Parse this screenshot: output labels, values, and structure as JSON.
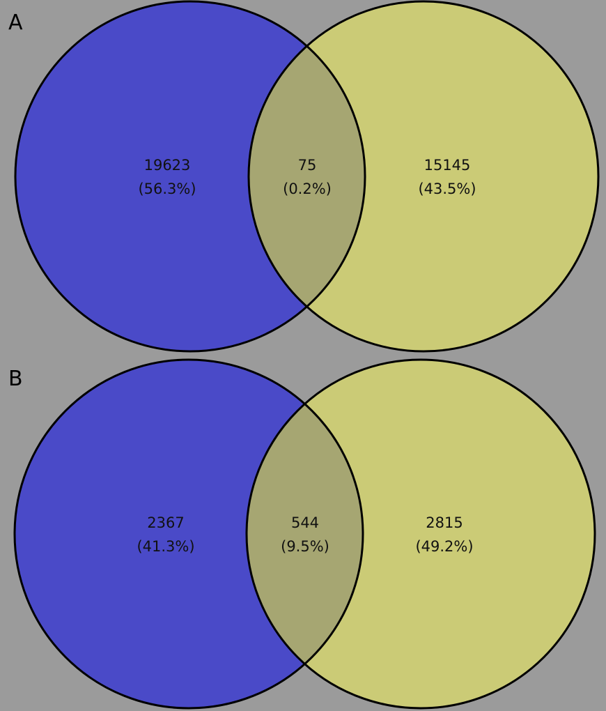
{
  "colors": {
    "background": "#9b9b9b",
    "left_set": "#4a4ac8",
    "right_set": "#cbcb76",
    "overlap": "#a6a672",
    "outline": "#000000"
  },
  "panels": [
    {
      "label": "A",
      "left_only": {
        "count": "19623",
        "percent": "(56.3%)"
      },
      "overlap": {
        "count": "75",
        "percent": "(0.2%)"
      },
      "right_only": {
        "count": "15145",
        "percent": "(43.5%)"
      }
    },
    {
      "label": "B",
      "left_only": {
        "count": "2367",
        "percent": "(41.3%)"
      },
      "overlap": {
        "count": "544",
        "percent": "(9.5%)"
      },
      "right_only": {
        "count": "2815",
        "percent": "(49.2%)"
      }
    }
  ]
}
